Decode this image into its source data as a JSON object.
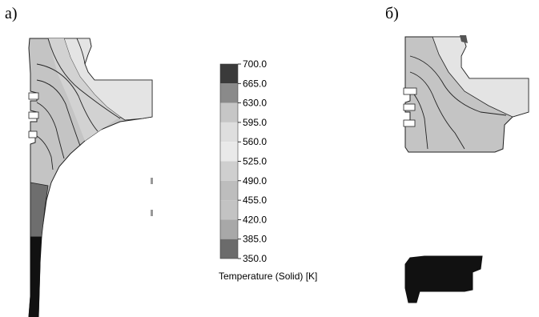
{
  "panels": {
    "a_label": "а)",
    "b_label": "б)"
  },
  "legend": {
    "title": "Temperature (Solid) [K]",
    "ticks": [
      "700.0",
      "665.0",
      "630.0",
      "595.0",
      "560.0",
      "525.0",
      "490.0",
      "455.0",
      "420.0",
      "385.0",
      "350.0"
    ],
    "band_colors": [
      "#3a3a3a",
      "#8a8a8a",
      "#c6c6c6",
      "#dedede",
      "#e9e9e9",
      "#cfcfcf",
      "#bdbdbd",
      "#c3c3c3",
      "#a8a8a8",
      "#6b6b6b",
      "#1a1a1a"
    ]
  },
  "colors": {
    "piston_light": "#e2e2e2",
    "piston_mid": "#c2c2c2",
    "piston_dark": "#6e6e6e",
    "piston_black": "#111111",
    "contour_line": "#222222"
  }
}
